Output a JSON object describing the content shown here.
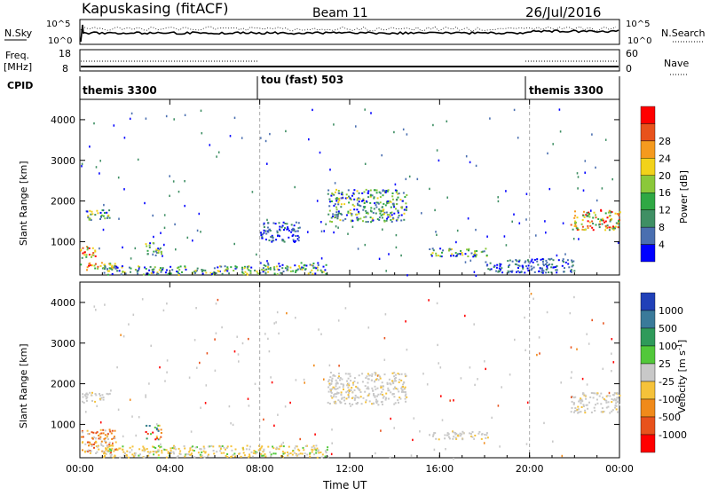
{
  "header": {
    "station": "Kapuskasing (fitACF)",
    "beam": "Beam 11",
    "date": "26/Jul/2016"
  },
  "top_panels": {
    "nsky_label": "N.Sky",
    "nsky_ticks": [
      "10^5",
      "10^0"
    ],
    "nsearch_label": "N.Search",
    "nsearch_ticks": [
      "10^5",
      "10^0"
    ],
    "freq_label": "Freq.",
    "freq_unit": "[MHz]",
    "freq_ticks": [
      "18",
      "8"
    ],
    "nave_label": "Nave",
    "nave_ticks": [
      "60",
      "0"
    ],
    "cpid_label": "CPID",
    "cpid_segments": [
      {
        "label": "themis 3300",
        "start_hour": 0,
        "end_hour": 8
      },
      {
        "label": "tou (fast) 503",
        "start_hour": 8,
        "end_hour": 20
      },
      {
        "label": "themis 3300",
        "start_hour": 20,
        "end_hour": 24
      }
    ]
  },
  "chart_data": [
    {
      "type": "heatmap",
      "name": "power-panel",
      "ylabel": "Slant Range [km]",
      "xlabel": "",
      "yticks": [
        1000,
        2000,
        3000,
        4000
      ],
      "xticks_hours": [
        0,
        4,
        8,
        12,
        16,
        20,
        24
      ],
      "ylim": [
        180,
        4500
      ],
      "xlim_hours": [
        0,
        24
      ],
      "colorbar": {
        "label": "Power [dB]",
        "ticks": [
          "4",
          "8",
          "12",
          "16",
          "20",
          "24",
          "28"
        ],
        "colors": [
          "#0000ff",
          "#4a6fb0",
          "#3f8f64",
          "#2fa844",
          "#8bc83a",
          "#f2d21a",
          "#f59a1e",
          "#e8521c",
          "#ff0000"
        ]
      },
      "regions": [
        {
          "x": [
            0.0,
            1.6
          ],
          "y": [
            300,
            520
          ],
          "level": "high"
        },
        {
          "x": [
            0.0,
            0.8
          ],
          "y": [
            600,
            900
          ],
          "level": "high"
        },
        {
          "x": [
            0.0,
            1.3
          ],
          "y": [
            1550,
            1800
          ],
          "level": "mid"
        },
        {
          "x": [
            2.9,
            3.6
          ],
          "y": [
            650,
            1000
          ],
          "level": "mid"
        },
        {
          "x": [
            1.0,
            8.0
          ],
          "y": [
            200,
            420
          ],
          "level": "mid"
        },
        {
          "x": [
            8.0,
            11.0
          ],
          "y": [
            220,
            500
          ],
          "level": "mid"
        },
        {
          "x": [
            8.0,
            9.8
          ],
          "y": [
            1000,
            1500
          ],
          "level": "low"
        },
        {
          "x": [
            11.0,
            14.5
          ],
          "y": [
            1500,
            2300
          ],
          "level": "mid"
        },
        {
          "x": [
            15.5,
            18.2
          ],
          "y": [
            650,
            850
          ],
          "level": "mid"
        },
        {
          "x": [
            21.8,
            24.0
          ],
          "y": [
            1300,
            1800
          ],
          "level": "high"
        },
        {
          "x": [
            18.0,
            22.0
          ],
          "y": [
            250,
            600
          ],
          "level": "low"
        }
      ]
    },
    {
      "type": "heatmap",
      "name": "velocity-panel",
      "ylabel": "Slant Range [km]",
      "xlabel": "Time UT",
      "yticks": [
        1000,
        2000,
        3000,
        4000
      ],
      "xticks_labels": [
        "00:00",
        "04:00",
        "08:00",
        "12:00",
        "16:00",
        "20:00",
        "00:00"
      ],
      "xticks_hours": [
        0,
        4,
        8,
        12,
        16,
        20,
        24
      ],
      "ylim": [
        180,
        4500
      ],
      "xlim_hours": [
        0,
        24
      ],
      "colorbar": {
        "label": "Velocity [m s^-1]",
        "ticks": [
          "1000",
          "500",
          "100",
          "25",
          "-25",
          "-100",
          "-500",
          "-1000"
        ],
        "colors": [
          "#2040b8",
          "#3a7a9a",
          "#2f9a5a",
          "#52c83a",
          "#c8c8c8",
          "#f5c23a",
          "#f08a1a",
          "#e8521c",
          "#ff0000"
        ]
      },
      "regions": [
        {
          "x": [
            0.0,
            1.6
          ],
          "y": [
            300,
            900
          ],
          "level": "orange"
        },
        {
          "x": [
            0.0,
            1.3
          ],
          "y": [
            1550,
            1800
          ],
          "level": "grey"
        },
        {
          "x": [
            2.9,
            3.6
          ],
          "y": [
            650,
            1000
          ],
          "level": "mixed"
        },
        {
          "x": [
            1.0,
            11.0
          ],
          "y": [
            200,
            500
          ],
          "level": "orange-grey"
        },
        {
          "x": [
            11.0,
            14.5
          ],
          "y": [
            1500,
            2300
          ],
          "level": "grey"
        },
        {
          "x": [
            15.5,
            18.2
          ],
          "y": [
            650,
            850
          ],
          "level": "grey"
        },
        {
          "x": [
            21.8,
            24.0
          ],
          "y": [
            1300,
            1800
          ],
          "level": "grey"
        }
      ]
    }
  ],
  "colors": {
    "axis": "#000000",
    "dashed_divider": "#aaaaaa"
  }
}
